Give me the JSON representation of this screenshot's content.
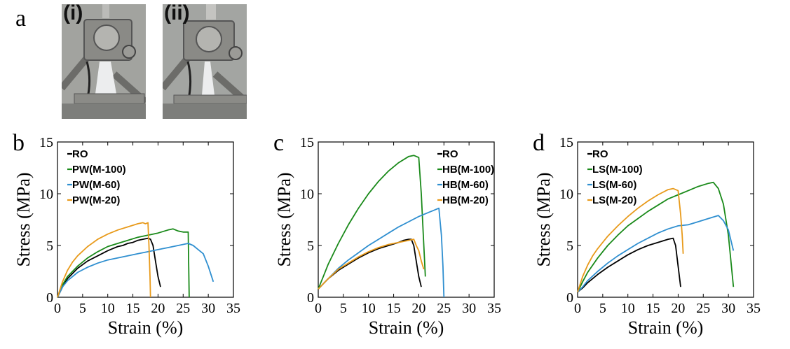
{
  "panel_a": {
    "letter": "a",
    "photos": [
      {
        "label": "(i)"
      },
      {
        "label": "(ii)"
      }
    ]
  },
  "colors": {
    "RO": "#000000",
    "M-100": "#1a8a1a",
    "M-60": "#2f8fd0",
    "M-20": "#e89a1a"
  },
  "chart_data": [
    {
      "panel": "b",
      "type": "line",
      "xlabel": "Strain (%)",
      "ylabel": "Stress (MPa)",
      "xlim": [
        0,
        35
      ],
      "ylim": [
        0,
        15
      ],
      "xticks": [
        0,
        5,
        10,
        15,
        20,
        25,
        30,
        35
      ],
      "yticks": [
        0,
        5,
        10,
        15
      ],
      "grid": false,
      "legend_position": "top-left",
      "series": [
        {
          "name": "RO",
          "color": "#000000",
          "x": [
            0,
            1,
            2,
            4,
            6,
            8,
            10,
            11,
            12,
            13,
            14,
            15,
            16,
            17,
            18,
            18.5,
            19,
            19.5,
            20,
            20.5
          ],
          "y": [
            0,
            1.0,
            1.8,
            2.8,
            3.5,
            4.0,
            4.5,
            4.7,
            4.9,
            5.0,
            5.2,
            5.3,
            5.5,
            5.6,
            5.7,
            5.6,
            5.0,
            3.5,
            2.0,
            1.0
          ]
        },
        {
          "name": "PW(M-100)",
          "color": "#1a8a1a",
          "x": [
            0,
            1,
            2,
            4,
            6,
            8,
            10,
            12,
            14,
            16,
            18,
            20,
            22,
            23,
            24,
            25,
            26,
            26.1,
            26.2
          ],
          "y": [
            0,
            1.2,
            2.0,
            3.0,
            3.8,
            4.4,
            4.9,
            5.2,
            5.5,
            5.8,
            6.0,
            6.2,
            6.5,
            6.6,
            6.4,
            6.3,
            6.3,
            3.0,
            0
          ]
        },
        {
          "name": "PW(M-60)",
          "color": "#2f8fd0",
          "x": [
            0,
            1,
            2,
            4,
            6,
            8,
            10,
            12,
            14,
            16,
            18,
            20,
            22,
            24,
            25,
            26,
            27,
            28,
            29,
            30,
            31
          ],
          "y": [
            0,
            1.0,
            1.6,
            2.4,
            2.9,
            3.3,
            3.6,
            3.8,
            4.0,
            4.2,
            4.4,
            4.6,
            4.8,
            5.0,
            5.1,
            5.2,
            5.0,
            4.6,
            4.2,
            3.0,
            1.5
          ]
        },
        {
          "name": "PW(M-20)",
          "color": "#e89a1a",
          "x": [
            0,
            1,
            2,
            3,
            4,
            6,
            8,
            10,
            12,
            14,
            16,
            17,
            17.5,
            18,
            18.2,
            18.4,
            18.5
          ],
          "y": [
            0,
            1.5,
            2.6,
            3.4,
            4.0,
            4.9,
            5.6,
            6.1,
            6.5,
            6.8,
            7.1,
            7.2,
            7.1,
            7.2,
            5.0,
            2.0,
            0
          ]
        }
      ]
    },
    {
      "panel": "c",
      "type": "line",
      "xlabel": "Strain (%)",
      "ylabel": "Stress (MPa)",
      "xlim": [
        0,
        35
      ],
      "ylim": [
        0,
        15
      ],
      "xticks": [
        0,
        5,
        10,
        15,
        20,
        25,
        30,
        35
      ],
      "yticks": [
        0,
        5,
        10,
        15
      ],
      "grid": false,
      "legend_position": "top-right",
      "series": [
        {
          "name": "RO",
          "color": "#000000",
          "x": [
            0,
            1,
            2,
            4,
            6,
            8,
            10,
            12,
            14,
            16,
            17,
            18,
            18.5,
            19,
            19.5,
            20,
            20.5
          ],
          "y": [
            0.8,
            1.3,
            1.8,
            2.6,
            3.2,
            3.8,
            4.3,
            4.7,
            5.0,
            5.3,
            5.5,
            5.6,
            5.6,
            5.0,
            3.5,
            2.0,
            1.0
          ]
        },
        {
          "name": "HB(M-100)",
          "color": "#1a8a1a",
          "x": [
            0,
            1,
            2,
            4,
            6,
            8,
            10,
            12,
            14,
            16,
            18,
            19,
            20,
            20.5,
            21,
            21.3
          ],
          "y": [
            0.8,
            2.0,
            3.2,
            5.2,
            7.0,
            8.6,
            10.0,
            11.2,
            12.2,
            13.0,
            13.6,
            13.7,
            13.5,
            10.0,
            5.0,
            2.0
          ]
        },
        {
          "name": "HB(M-60)",
          "color": "#2f8fd0",
          "x": [
            0,
            1,
            2,
            4,
            6,
            8,
            10,
            12,
            14,
            16,
            18,
            20,
            22,
            23,
            24,
            24.5,
            24.8,
            25
          ],
          "y": [
            0.8,
            1.3,
            1.8,
            2.8,
            3.6,
            4.3,
            5.0,
            5.6,
            6.2,
            6.8,
            7.3,
            7.8,
            8.2,
            8.4,
            8.6,
            6.0,
            3.0,
            0
          ]
        },
        {
          "name": "HB(M-20)",
          "color": "#e89a1a",
          "x": [
            0,
            1,
            2,
            4,
            6,
            8,
            10,
            12,
            14,
            16,
            18,
            19,
            19.5,
            20,
            20.5,
            21
          ],
          "y": [
            0.8,
            1.3,
            1.8,
            2.7,
            3.3,
            3.9,
            4.4,
            4.8,
            5.1,
            5.3,
            5.5,
            5.6,
            5.0,
            4.5,
            3.5,
            2.7
          ]
        }
      ]
    },
    {
      "panel": "d",
      "type": "line",
      "xlabel": "Strain (%)",
      "ylabel": "Stress (MPa)",
      "xlim": [
        0,
        35
      ],
      "ylim": [
        0,
        15
      ],
      "xticks": [
        0,
        5,
        10,
        15,
        20,
        25,
        30,
        35
      ],
      "yticks": [
        0,
        5,
        10,
        15
      ],
      "grid": false,
      "legend_position": "top-left",
      "series": [
        {
          "name": "RO",
          "color": "#000000",
          "x": [
            0,
            1,
            2,
            4,
            6,
            8,
            10,
            12,
            14,
            16,
            18,
            19,
            19.5,
            20,
            20.5
          ],
          "y": [
            0.5,
            0.9,
            1.4,
            2.2,
            2.9,
            3.5,
            4.1,
            4.6,
            5.0,
            5.3,
            5.6,
            5.7,
            5.0,
            3.0,
            1.0
          ]
        },
        {
          "name": "LS(M-100)",
          "color": "#1a8a1a",
          "x": [
            0,
            1,
            2,
            4,
            6,
            8,
            10,
            12,
            14,
            16,
            18,
            20,
            22,
            24,
            26,
            27,
            28,
            29,
            30,
            30.5,
            31
          ],
          "y": [
            0.5,
            1.5,
            2.4,
            3.8,
            5.0,
            6.0,
            6.9,
            7.6,
            8.3,
            8.9,
            9.5,
            9.9,
            10.3,
            10.7,
            11.0,
            11.1,
            10.5,
            9.0,
            6.0,
            3.5,
            1.0
          ]
        },
        {
          "name": "LS(M-60)",
          "color": "#2f8fd0",
          "x": [
            0,
            1,
            2,
            4,
            6,
            8,
            10,
            12,
            14,
            16,
            18,
            20,
            22,
            24,
            26,
            28,
            29,
            30,
            30.5,
            31
          ],
          "y": [
            0.5,
            1.0,
            1.6,
            2.5,
            3.3,
            4.0,
            4.6,
            5.2,
            5.7,
            6.2,
            6.6,
            6.9,
            7.0,
            7.3,
            7.6,
            7.9,
            7.4,
            6.5,
            5.5,
            4.5
          ]
        },
        {
          "name": "LS(M-20)",
          "color": "#e89a1a",
          "x": [
            0,
            1,
            2,
            3,
            4,
            6,
            8,
            10,
            12,
            14,
            16,
            18,
            19,
            20,
            20.5,
            20.8,
            21
          ],
          "y": [
            0.5,
            2.0,
            3.1,
            4.0,
            4.7,
            5.9,
            6.9,
            7.8,
            8.6,
            9.3,
            9.9,
            10.4,
            10.5,
            10.3,
            8.0,
            6.0,
            4.2
          ]
        }
      ]
    }
  ]
}
